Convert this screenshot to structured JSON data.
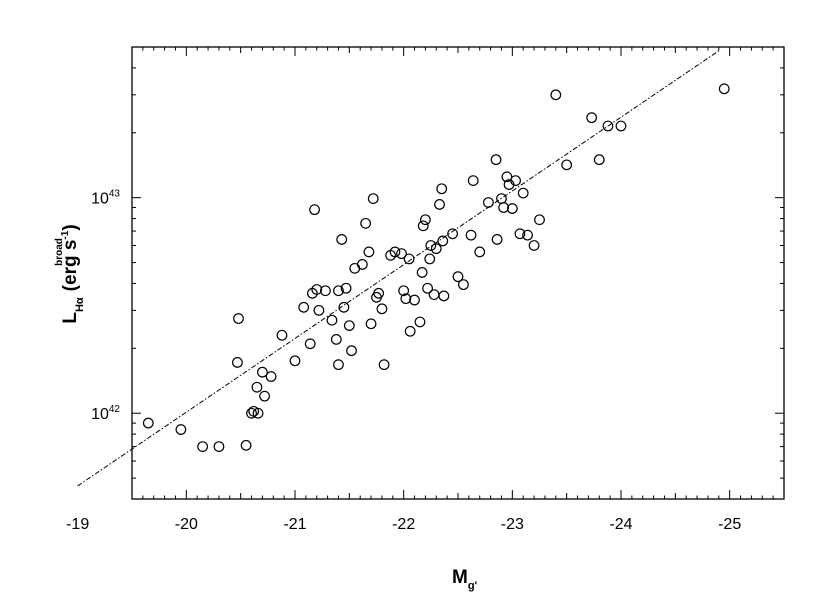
{
  "chart_data": {
    "type": "scatter",
    "x_axis": {
      "label_main": "M",
      "label_sub": "g'",
      "range": [
        -19.5,
        -25.5
      ],
      "reversed": true,
      "ticks": [
        {
          "value": -19,
          "label": "-19"
        },
        {
          "value": -20,
          "label": "-20"
        },
        {
          "value": -21,
          "label": "-21"
        },
        {
          "value": -22,
          "label": "-22"
        },
        {
          "value": -23,
          "label": "-23"
        },
        {
          "value": -24,
          "label": "-24"
        },
        {
          "value": -25,
          "label": "-25"
        }
      ]
    },
    "y_axis": {
      "label_main": "L",
      "label_sup": "broad",
      "label_sub": "Hα",
      "label_unit": "(erg s",
      "label_unit_sup": "-1",
      "label_unit_end": ")",
      "scale": "log",
      "range": [
        4e+41,
        5e+43
      ],
      "ticks": [
        {
          "value": 1e+42,
          "label_base": "10",
          "label_exp": "42"
        },
        {
          "value": 1e+43,
          "label_base": "10",
          "label_exp": "43"
        }
      ]
    },
    "grid": false,
    "fit_line": {
      "style": "dash-dot",
      "points": [
        [
          -19.0,
          4.6e+41
        ],
        [
          -24.9,
          4.8e+43
        ]
      ]
    },
    "points": [
      [
        -19.65,
        9e+41
      ],
      [
        -19.95,
        8.4e+41
      ],
      [
        -20.15,
        7e+41
      ],
      [
        -20.3,
        7e+41
      ],
      [
        -20.48,
        2.75e+42
      ],
      [
        -20.47,
        1.72e+42
      ],
      [
        -20.55,
        7.1e+41
      ],
      [
        -20.6,
        1e+42
      ],
      [
        -20.62,
        1.02e+42
      ],
      [
        -20.65,
        1.32e+42
      ],
      [
        -20.66,
        1e+42
      ],
      [
        -20.7,
        1.55e+42
      ],
      [
        -20.72,
        1.2e+42
      ],
      [
        -20.78,
        1.48e+42
      ],
      [
        -20.88,
        2.3e+42
      ],
      [
        -21.0,
        1.75e+42
      ],
      [
        -21.08,
        3.1e+42
      ],
      [
        -21.14,
        2.1e+42
      ],
      [
        -21.16,
        3.6e+42
      ],
      [
        -21.2,
        3.75e+42
      ],
      [
        -21.18,
        8.8e+42
      ],
      [
        -21.22,
        3e+42
      ],
      [
        -21.28,
        3.7e+42
      ],
      [
        -21.34,
        2.7e+42
      ],
      [
        -21.38,
        2.2e+42
      ],
      [
        -21.4,
        1.68e+42
      ],
      [
        -21.4,
        3.7e+42
      ],
      [
        -21.43,
        6.4e+42
      ],
      [
        -21.45,
        3.1e+42
      ],
      [
        -21.47,
        3.8e+42
      ],
      [
        -21.5,
        2.55e+42
      ],
      [
        -21.52,
        1.95e+42
      ],
      [
        -21.55,
        4.7e+42
      ],
      [
        -21.62,
        4.9e+42
      ],
      [
        -21.65,
        7.6e+42
      ],
      [
        -21.68,
        5.6e+42
      ],
      [
        -21.7,
        2.6e+42
      ],
      [
        -21.72,
        9.9e+42
      ],
      [
        -21.75,
        3.45e+42
      ],
      [
        -21.77,
        3.6e+42
      ],
      [
        -21.8,
        3.05e+42
      ],
      [
        -21.82,
        1.68e+42
      ],
      [
        -21.88,
        5.4e+42
      ],
      [
        -21.92,
        5.6e+42
      ],
      [
        -21.98,
        5.5e+42
      ],
      [
        -22.0,
        3.7e+42
      ],
      [
        -22.02,
        3.4e+42
      ],
      [
        -22.05,
        5.2e+42
      ],
      [
        -22.06,
        2.4e+42
      ],
      [
        -22.1,
        3.35e+42
      ],
      [
        -22.15,
        2.65e+42
      ],
      [
        -22.17,
        4.5e+42
      ],
      [
        -22.18,
        7.4e+42
      ],
      [
        -22.2,
        7.9e+42
      ],
      [
        -22.22,
        3.8e+42
      ],
      [
        -22.24,
        5.2e+42
      ],
      [
        -22.25,
        6e+42
      ],
      [
        -22.28,
        3.55e+42
      ],
      [
        -22.3,
        5.8e+42
      ],
      [
        -22.33,
        9.3e+42
      ],
      [
        -22.35,
        1.1e+43
      ],
      [
        -22.36,
        6.3e+42
      ],
      [
        -22.37,
        3.5e+42
      ],
      [
        -22.45,
        6.8e+42
      ],
      [
        -22.5,
        4.3e+42
      ],
      [
        -22.55,
        3.95e+42
      ],
      [
        -22.62,
        6.7e+42
      ],
      [
        -22.64,
        1.2e+43
      ],
      [
        -22.7,
        5.6e+42
      ],
      [
        -22.78,
        9.5e+42
      ],
      [
        -22.85,
        1.5e+43
      ],
      [
        -22.86,
        6.4e+42
      ],
      [
        -22.9,
        9.9e+42
      ],
      [
        -22.92,
        9e+42
      ],
      [
        -22.95,
        1.25e+43
      ],
      [
        -22.97,
        1.15e+43
      ],
      [
        -23.0,
        8.9e+42
      ],
      [
        -23.03,
        1.2e+43
      ],
      [
        -23.07,
        6.8e+42
      ],
      [
        -23.1,
        1.05e+43
      ],
      [
        -23.14,
        6.7e+42
      ],
      [
        -23.2,
        6e+42
      ],
      [
        -23.25,
        7.9e+42
      ],
      [
        -23.4,
        3e+43
      ],
      [
        -23.5,
        1.42e+43
      ],
      [
        -23.73,
        2.35e+43
      ],
      [
        -23.8,
        1.5e+43
      ],
      [
        -23.88,
        2.15e+43
      ],
      [
        -24.0,
        2.15e+43
      ],
      [
        -24.95,
        3.2e+43
      ]
    ]
  }
}
